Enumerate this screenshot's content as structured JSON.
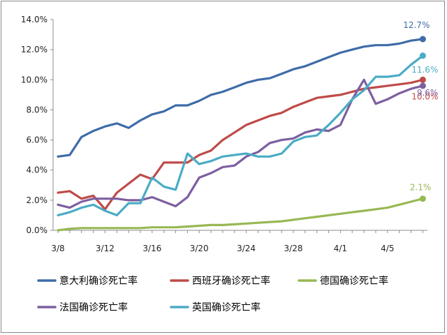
{
  "chart_data": {
    "type": "line",
    "y_ticks": [
      "0.0%",
      "2.0%",
      "4.0%",
      "6.0%",
      "8.0%",
      "10.0%",
      "12.0%",
      "14.0%"
    ],
    "x_ticks": [
      "3/8",
      "3/12",
      "3/16",
      "3/20",
      "3/24",
      "3/28",
      "4/1",
      "4/5"
    ],
    "ylim": [
      0,
      14
    ],
    "x": [
      "3/8",
      "3/9",
      "3/10",
      "3/11",
      "3/12",
      "3/13",
      "3/14",
      "3/15",
      "3/16",
      "3/17",
      "3/18",
      "3/19",
      "3/20",
      "3/21",
      "3/22",
      "3/23",
      "3/24",
      "3/25",
      "3/26",
      "3/27",
      "3/28",
      "3/29",
      "3/30",
      "3/31",
      "4/1",
      "4/2",
      "4/3",
      "4/4",
      "4/5",
      "4/6",
      "4/7",
      "4/8"
    ],
    "grid": false,
    "legend_position": "bottom",
    "series": [
      {
        "name": "意大利确诊死亡率",
        "color": "#3e6ca8",
        "end_label": "12.7%",
        "values": [
          4.9,
          5.0,
          6.2,
          6.6,
          6.9,
          7.1,
          6.8,
          7.3,
          7.7,
          7.9,
          8.3,
          8.3,
          8.6,
          9.0,
          9.2,
          9.5,
          9.8,
          10.0,
          10.1,
          10.4,
          10.7,
          10.9,
          11.2,
          11.5,
          11.8,
          12.0,
          12.2,
          12.3,
          12.3,
          12.4,
          12.6,
          12.7
        ]
      },
      {
        "name": "西班牙确诊死亡率",
        "color": "#be4b48",
        "end_label": "10.0%",
        "values": [
          2.5,
          2.6,
          2.1,
          2.3,
          1.4,
          2.5,
          3.1,
          3.7,
          3.4,
          4.5,
          4.5,
          4.5,
          5.0,
          5.3,
          6.0,
          6.5,
          7.0,
          7.3,
          7.6,
          7.8,
          8.2,
          8.5,
          8.8,
          8.9,
          9.0,
          9.2,
          9.4,
          9.5,
          9.6,
          9.7,
          9.8,
          10.0
        ]
      },
      {
        "name": "德国确诊死亡率",
        "color": "#97b853",
        "end_label": "2.1%",
        "values": [
          0.0,
          0.1,
          0.15,
          0.15,
          0.15,
          0.15,
          0.15,
          0.15,
          0.2,
          0.2,
          0.2,
          0.25,
          0.3,
          0.35,
          0.35,
          0.4,
          0.45,
          0.5,
          0.55,
          0.6,
          0.7,
          0.8,
          0.9,
          1.0,
          1.1,
          1.2,
          1.3,
          1.4,
          1.5,
          1.7,
          1.9,
          2.1
        ]
      },
      {
        "name": "法国确诊死亡率",
        "color": "#7d5fa0",
        "end_label": "9.6%",
        "values": [
          1.7,
          1.5,
          1.9,
          2.1,
          2.1,
          2.1,
          2.0,
          2.0,
          2.2,
          1.9,
          1.6,
          2.2,
          3.5,
          3.8,
          4.2,
          4.3,
          4.9,
          5.2,
          5.8,
          6.0,
          6.1,
          6.5,
          6.7,
          6.6,
          7.0,
          8.7,
          10.0,
          8.4,
          8.7,
          9.1,
          9.4,
          9.6
        ]
      },
      {
        "name": "英国确诊死亡率",
        "color": "#4aacc5",
        "end_label": "11.6%",
        "values": [
          1.0,
          1.2,
          1.5,
          1.7,
          1.3,
          1.0,
          1.8,
          1.8,
          3.5,
          2.9,
          2.7,
          5.1,
          4.4,
          4.6,
          4.9,
          5.0,
          5.1,
          4.9,
          4.9,
          5.1,
          5.9,
          6.2,
          6.3,
          7.0,
          7.8,
          8.7,
          9.3,
          10.2,
          10.2,
          10.3,
          11.0,
          11.6
        ]
      }
    ]
  }
}
